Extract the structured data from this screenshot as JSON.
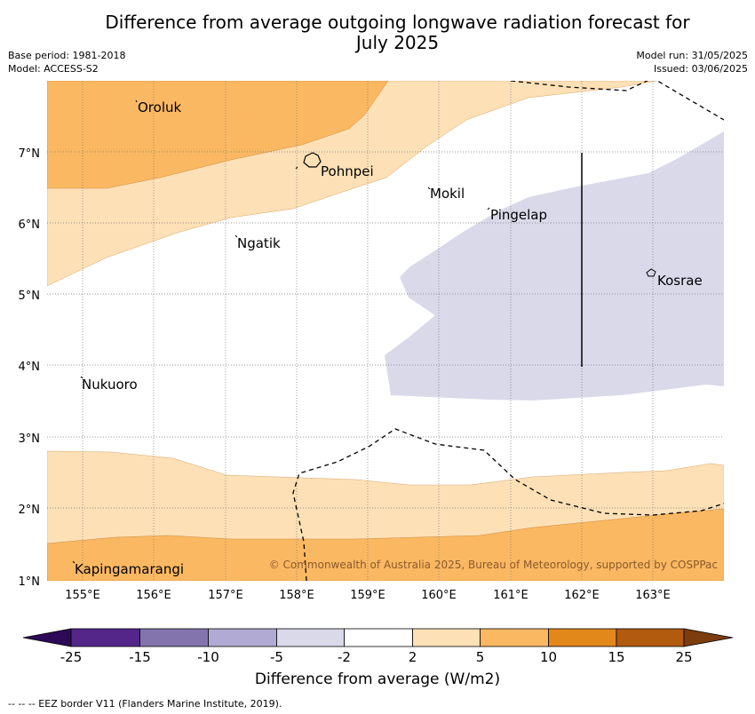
{
  "title_line1": "Difference from average outgoing longwave radiation forecast for",
  "title_line2": "July 2025",
  "meta_left": [
    "Base period: 1981-2018",
    "Model: ACCESS-S2"
  ],
  "meta_right": [
    "Model run: 31/05/2025",
    "Issued: 03/06/2025"
  ],
  "longitude_ticks": [
    "155°E",
    "156°E",
    "157°E",
    "158°E",
    "159°E",
    "160°E",
    "161°E",
    "162°E",
    "163°E"
  ],
  "latitude_ticks": [
    "1°N",
    "2°N",
    "3°N",
    "4°N",
    "5°N",
    "6°N",
    "7°N"
  ],
  "places": [
    "Oroluk",
    "Pohnpei",
    "Mokil",
    "Pingelap",
    "Ngatik",
    "Kosrae",
    "Nukuoro",
    "Kapingamarangi"
  ],
  "copyright": "© Commonwealth of Australia 2025, Bureau of Meteorology, supported by COSPPac",
  "colorbar": {
    "ticks": [
      "-25",
      "-15",
      "-10",
      "-5",
      "-2",
      "2",
      "5",
      "10",
      "15",
      "25"
    ],
    "colors": [
      "#2d0a55",
      "#54268a",
      "#8474ae",
      "#b1abd3",
      "#d9d9ea",
      "#ffffff",
      "#fde0b6",
      "#fbb862",
      "#e2871a",
      "#b25a0e",
      "#7d3c0c"
    ],
    "title": "Difference from average (W/m2)"
  },
  "footer": "--  --  -- EEZ border V11 (Flanders Marine Institute, 2019)."
}
